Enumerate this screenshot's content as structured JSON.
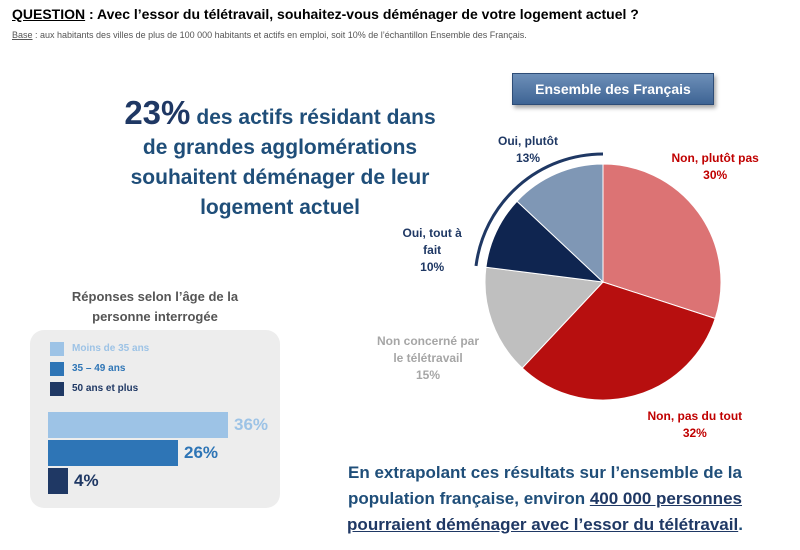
{
  "question": {
    "prefix": "QUESTION",
    "text": " : Avec l’essor du télétravail, souhaitez-vous déménager de votre logement actuel ?"
  },
  "base": {
    "prefix": "Base",
    "text": " : aux habitants des villes de plus de 100 000 habitants et actifs en emploi, soit 10% de l’échantillon Ensemble des Français."
  },
  "headline": {
    "big": "23%",
    "line1": "des actifs résidant dans",
    "line2": "de grandes agglomérations",
    "line3": "souhaitent déménager de leur",
    "line4": "logement actuel"
  },
  "pie_badge": "Ensemble des Français",
  "age_section": {
    "title_line1": "Réponses selon l’âge de la",
    "title_line2": "personne interrogée"
  },
  "bottom": {
    "line1": "En extrapolant ces résultats sur l’ensemble de la",
    "line2_pre": "population française, environ ",
    "line2_ul": "400 000 personnes",
    "line3_ul": "pourraient déménager avec l’essor du télétravail",
    "line3_post": "."
  },
  "chart_data": [
    {
      "type": "pie",
      "title": "Ensemble des Français",
      "slices": [
        {
          "label_lines": [
            "Non, plutôt pas"
          ],
          "value": 30,
          "value_label": "30%",
          "color": "#dc7374",
          "label_color": "#c00000"
        },
        {
          "label_lines": [
            "Non, pas du tout"
          ],
          "value": 32,
          "value_label": "32%",
          "color": "#b70f0f",
          "label_color": "#c00000"
        },
        {
          "label_lines": [
            "Non concerné par",
            "le télétravail"
          ],
          "value": 15,
          "value_label": "15%",
          "color": "#bfbfbf",
          "label_color": "#a6a6a6"
        },
        {
          "label_lines": [
            "Oui, tout à",
            "fait"
          ],
          "value": 10,
          "value_label": "10%",
          "color": "#0f2550",
          "label_color": "#1f3864"
        },
        {
          "label_lines": [
            "Oui, plutôt"
          ],
          "value": 13,
          "value_label": "13%",
          "color": "#7f97b5",
          "label_color": "#1f3864"
        }
      ]
    },
    {
      "type": "bar",
      "orientation": "horizontal",
      "categories": [
        "Moins de 35 ans",
        "35 – 49 ans",
        "50 ans et plus"
      ],
      "values": [
        36,
        26,
        4
      ],
      "value_labels": [
        "36%",
        "26%",
        "4%"
      ],
      "colors": [
        "#9dc3e6",
        "#2e75b6",
        "#1f3864"
      ],
      "value_label_colors": [
        "#9dc3e6",
        "#2e75b6",
        "#1f3864"
      ],
      "xlim": [
        0,
        36
      ]
    }
  ]
}
